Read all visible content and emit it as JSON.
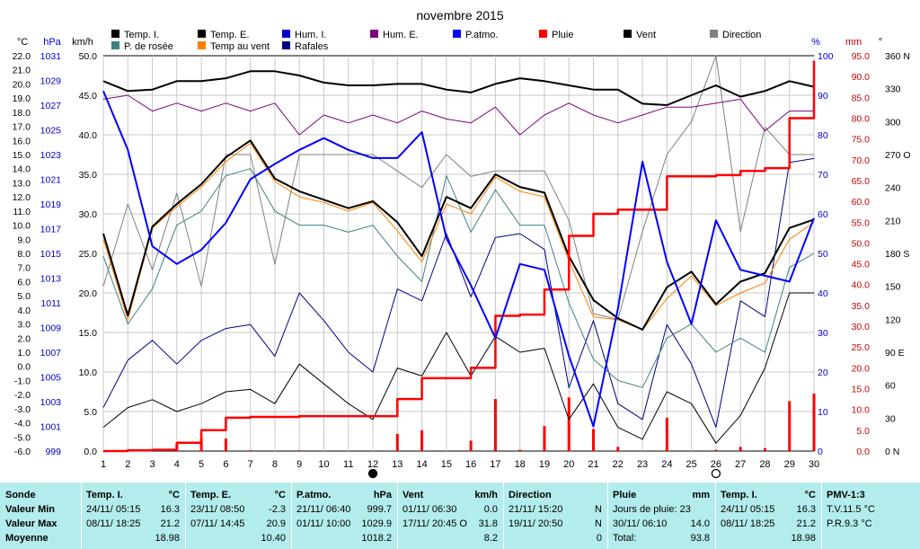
{
  "chart_data": {
    "type": "line",
    "title": "novembre 2015",
    "x": [
      1,
      2,
      3,
      4,
      5,
      6,
      7,
      8,
      9,
      10,
      11,
      12,
      13,
      14,
      15,
      16,
      17,
      18,
      19,
      20,
      21,
      22,
      23,
      24,
      25,
      26,
      27,
      28,
      29,
      30
    ],
    "x_ticks": [
      "1",
      "2",
      "3",
      "4",
      "5",
      "6",
      "7",
      "8",
      "9",
      "10",
      "11",
      "12",
      "13",
      "14",
      "15",
      "16",
      "17",
      "18",
      "19",
      "20",
      "21",
      "22",
      "23",
      "24",
      "25",
      "26",
      "27",
      "28",
      "29",
      "30"
    ],
    "moon_phases": [
      {
        "day": 12,
        "phase": "new"
      },
      {
        "day": 26,
        "phase": "full"
      }
    ],
    "left_axes": [
      {
        "unit": "°C",
        "color": "#000000",
        "ticks": [
          "22.0",
          "21.0",
          "20.0",
          "19.0",
          "18.0",
          "17.0",
          "16.0",
          "15.0",
          "14.0",
          "13.0",
          "12.0",
          "11.0",
          "10.0",
          "9.0",
          "8.0",
          "7.0",
          "6.0",
          "5.0",
          "4.0",
          "3.0",
          "2.0",
          "1.0",
          "0.0",
          "-1.0",
          "-2.0",
          "-3.0",
          "-4.0",
          "-5.0",
          "-6.0"
        ]
      },
      {
        "unit": "hPa",
        "color": "#0000cc",
        "ticks": [
          "1031",
          "1029",
          "1027",
          "1025",
          "1023",
          "1021",
          "1019",
          "1017",
          "1015",
          "1013",
          "1011",
          "1009",
          "1007",
          "1005",
          "1003",
          "1001",
          "999"
        ]
      },
      {
        "unit": "km/h",
        "color": "#000000",
        "ticks": [
          "50.0",
          "45.0",
          "40.0",
          "35.0",
          "30.0",
          "25.0",
          "20.0",
          "15.0",
          "10.0",
          "5.0",
          "0.0"
        ]
      }
    ],
    "right_axes": [
      {
        "unit": "%",
        "color": "#0000cc",
        "ticks": [
          "100",
          "90",
          "80",
          "70",
          "60",
          "50",
          "40",
          "30",
          "20",
          "10",
          "0"
        ]
      },
      {
        "unit": "mm",
        "color": "#cc0000",
        "ticks": [
          "95.0",
          "90.0",
          "85.0",
          "80.0",
          "75.0",
          "70.0",
          "65.0",
          "60.0",
          "55.0",
          "50.0",
          "45.0",
          "40.0",
          "35.0",
          "30.0",
          "25.0",
          "20.0",
          "15.0",
          "10.0",
          "5.0",
          "0.0"
        ]
      },
      {
        "unit": "°",
        "color": "#000000",
        "ticks": [
          "360 N",
          "330",
          "300",
          "270 O",
          "240",
          "210",
          "180 S",
          "150",
          "120",
          "90 E",
          "60",
          "30",
          "0 N"
        ]
      }
    ],
    "legend": [
      {
        "name": "Temp. I.",
        "color": "#000000"
      },
      {
        "name": "Temp. E.",
        "color": "#000000"
      },
      {
        "name": "Hum. I.",
        "color": "#0000cc"
      },
      {
        "name": "Hum. E.",
        "color": "#800080"
      },
      {
        "name": "P.atmo.",
        "color": "#0000ff"
      },
      {
        "name": "Pluie",
        "color": "#ff0000"
      },
      {
        "name": "Vent",
        "color": "#000000"
      },
      {
        "name": "Direction",
        "color": "#808080"
      },
      {
        "name": "P. de rosée",
        "color": "#408080"
      },
      {
        "name": "Temp au vent",
        "color": "#ff8000"
      },
      {
        "name": "Rafales",
        "color": "#000080"
      }
    ],
    "series": [
      {
        "name": "Temp. I.",
        "unit": "°C",
        "color": "#000000",
        "values": [
          20.2,
          19.5,
          19.6,
          20.2,
          20.2,
          20.4,
          20.9,
          20.9,
          20.6,
          20.1,
          19.9,
          19.9,
          20.0,
          20.0,
          19.6,
          19.4,
          20.0,
          20.4,
          20.2,
          19.9,
          19.6,
          19.6,
          18.6,
          18.5,
          19.2,
          19.9,
          19.1,
          19.5,
          20.2,
          19.8
        ]
      },
      {
        "name": "Temp. E.",
        "unit": "°C",
        "color": "#000000",
        "values": [
          9.4,
          3.6,
          9.9,
          11.5,
          12.9,
          14.8,
          16.0,
          13.3,
          12.4,
          11.8,
          11.2,
          11.7,
          10.2,
          7.8,
          12.0,
          11.2,
          13.6,
          12.7,
          12.3,
          7.8,
          4.7,
          3.4,
          2.6,
          5.6,
          6.7,
          4.4,
          6.0,
          6.6,
          9.8,
          10.4
        ]
      },
      {
        "name": "Hum. E.",
        "unit": "%",
        "color": "#800080",
        "values": [
          89,
          90,
          86,
          88,
          86,
          88,
          86,
          88,
          80,
          85,
          83,
          85,
          83,
          86,
          84,
          83,
          87,
          80,
          85,
          88,
          85,
          83,
          85,
          87,
          87,
          88,
          89,
          81,
          86,
          86
        ]
      },
      {
        "name": "P.atmo.",
        "unit": "hPa",
        "color": "#0000ff",
        "values": [
          1029.5,
          1024.5,
          1016.3,
          1014.8,
          1016.0,
          1018.3,
          1022.0,
          1023.3,
          1024.5,
          1025.5,
          1024.5,
          1023.8,
          1023.8,
          1026.0,
          1017.0,
          1013.0,
          1008.5,
          1014.8,
          1014.3,
          1007.0,
          1001.0,
          1011.0,
          1023.5,
          1015.0,
          1009.7,
          1018.5,
          1014.3,
          1013.8,
          1013.3,
          1018.7
        ]
      },
      {
        "name": "Pluie (cumul)",
        "unit": "mm",
        "color": "#ff0000",
        "values": [
          0.0,
          0.2,
          0.3,
          2.0,
          5.0,
          8.0,
          8.2,
          8.2,
          8.4,
          8.4,
          8.4,
          8.4,
          12.5,
          17.5,
          17.5,
          20.0,
          32.5,
          32.8,
          38.8,
          51.7,
          57.0,
          58.0,
          58.0,
          66.0,
          66.0,
          66.3,
          67.3,
          68.0,
          80.0,
          93.8
        ]
      },
      {
        "name": "Pluie (jour)",
        "unit": "mm",
        "color": "#ff0000",
        "values": [
          0.0,
          0.2,
          0.1,
          1.7,
          3.0,
          3.0,
          0.2,
          0.0,
          0.2,
          0.0,
          0.0,
          0.0,
          4.1,
          5.0,
          0.0,
          2.5,
          12.5,
          0.3,
          6.0,
          12.9,
          5.3,
          1.0,
          0.0,
          8.0,
          0.0,
          0.3,
          1.0,
          0.7,
          12.0,
          13.8
        ]
      },
      {
        "name": "Vent",
        "unit": "km/h",
        "color": "#000000",
        "values": [
          3.0,
          5.5,
          6.5,
          5.0,
          6.0,
          7.5,
          7.8,
          6.0,
          11.0,
          8.5,
          6.0,
          4.0,
          10.5,
          9.5,
          15.0,
          9.5,
          14.5,
          12.5,
          13.0,
          4.0,
          8.5,
          3.0,
          1.5,
          7.5,
          6.0,
          1.0,
          4.5,
          10.5,
          20.0,
          20.0
        ]
      },
      {
        "name": "Direction",
        "unit": "°",
        "color": "#808080",
        "values": [
          150,
          225,
          165,
          235,
          150,
          270,
          270,
          170,
          270,
          270,
          270,
          270,
          255,
          240,
          270,
          250,
          255,
          255,
          255,
          210,
          125,
          120,
          200,
          270,
          300,
          360,
          200,
          295,
          270,
          270
        ]
      },
      {
        "name": "P. de rosée",
        "unit": "°C",
        "color": "#408080",
        "values": [
          7.8,
          3.0,
          5.5,
          10.0,
          11.0,
          13.5,
          14.0,
          11.0,
          10.0,
          10.0,
          9.5,
          10.0,
          7.8,
          6.0,
          13.5,
          9.5,
          12.5,
          10.0,
          10.0,
          4.5,
          0.5,
          -1.0,
          -1.5,
          2.0,
          3.0,
          1.0,
          2.0,
          1.0,
          7.0,
          8.0
        ]
      },
      {
        "name": "Temp au vent",
        "unit": "°C",
        "color": "#ff8000",
        "values": [
          9.0,
          3.3,
          9.8,
          11.3,
          12.7,
          14.5,
          15.8,
          13.1,
          12.0,
          11.6,
          11.0,
          11.6,
          9.6,
          7.4,
          11.5,
          10.8,
          13.4,
          12.4,
          12.0,
          7.5,
          3.5,
          3.3,
          2.6,
          4.8,
          6.4,
          4.3,
          5.2,
          5.9,
          9.0,
          10.2
        ]
      },
      {
        "name": "Rafales",
        "unit": "km/h",
        "color": "#000080",
        "values": [
          5.5,
          11.5,
          14.0,
          11.0,
          14.0,
          15.5,
          16.0,
          12.0,
          20.0,
          16.5,
          12.5,
          10.0,
          20.5,
          19.0,
          27.5,
          19.5,
          27.0,
          27.5,
          25.5,
          8.0,
          16.5,
          6.0,
          4.0,
          16.0,
          11.0,
          3.0,
          19.0,
          17.0,
          36.5,
          37.0
        ]
      }
    ]
  },
  "stats": {
    "row_labels": [
      "Sonde",
      "Valeur Min",
      "Valeur Max",
      "Moyenne"
    ],
    "sections": [
      {
        "title": "Temp. I.",
        "unit": "°C",
        "rows": [
          [
            "24/11/ 05:15",
            "16.3"
          ],
          [
            "08/11/ 18:25",
            "21.2"
          ],
          [
            "",
            "18.98"
          ]
        ]
      },
      {
        "title": "Temp. E.",
        "unit": "°C",
        "rows": [
          [
            "23/11/ 08:50",
            "-2.3"
          ],
          [
            "07/11/ 14:45",
            "20.9"
          ],
          [
            "",
            "10.40"
          ]
        ]
      },
      {
        "title": "P.atmo.",
        "unit": "hPa",
        "rows": [
          [
            "21/11/ 06:40",
            "999.7"
          ],
          [
            "01/11/ 10:00",
            "1029.9"
          ],
          [
            "",
            "1018.2"
          ]
        ]
      },
      {
        "title": "Vent",
        "unit": "km/h",
        "rows": [
          [
            "01/11/ 06:30",
            "0.0"
          ],
          [
            "17/11/ 20:45 O",
            "31.8"
          ],
          [
            "",
            "8.2"
          ]
        ]
      },
      {
        "title": "Direction",
        "unit": "",
        "rows": [
          [
            "21/11/ 15:20",
            "N"
          ],
          [
            "19/11/ 20:50",
            "N"
          ],
          [
            "",
            "0"
          ]
        ]
      },
      {
        "title": "Pluie",
        "unit": "mm",
        "rows": [
          [
            "Jours de pluie: 23",
            ""
          ],
          [
            "30/11/ 06:10",
            "14.0"
          ],
          [
            "Total:",
            "93.8"
          ]
        ]
      },
      {
        "title": "Temp. I.",
        "unit": "°C",
        "rows": [
          [
            "24/11/ 05:15",
            "16.3"
          ],
          [
            "08/11/ 18:25",
            "21.2"
          ],
          [
            "",
            "18.98"
          ]
        ]
      },
      {
        "title": "PMV-1:3",
        "unit": "",
        "rows": [
          [
            "T.V.11.5 °C",
            ""
          ],
          [
            "P.R.9.3 °C",
            ""
          ],
          [
            "",
            ""
          ]
        ]
      }
    ]
  }
}
